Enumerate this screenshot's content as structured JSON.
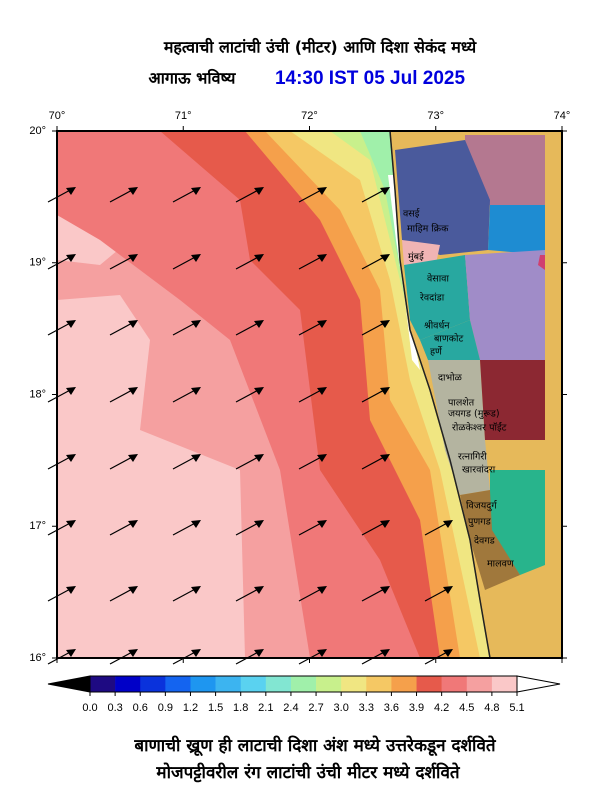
{
  "header": {
    "title": "महत्वाची लाटांची उंची (मीटर) आणि दिशा सेकंद मध्ये",
    "subtitle": "आगाऊ भविष्य",
    "time": "14:30 IST 05 Jul 2025"
  },
  "axes": {
    "top": [
      "70°",
      "71°",
      "72°",
      "73°",
      "74°"
    ],
    "left": [
      "20°",
      "19°",
      "18°",
      "17°",
      "16°"
    ]
  },
  "places": [
    "वसई",
    "माहिम क्रिक",
    "मुंबई",
    "वेसावा",
    "रेवदांडा",
    "श्रीवर्धन",
    "बाणकोट",
    "हर्णे",
    "दाभोळ",
    "पालशेत",
    "जयगड (मुरूड)",
    "रोळकेश्वर पॉईंट",
    "रत्नागिरी",
    "खारवांदरा",
    "विजयदुर्ग",
    "पुणगड",
    "देवगड",
    "मालवण"
  ],
  "colorbar": {
    "ticks": [
      "0.0",
      "0.3",
      "0.6",
      "0.9",
      "1.2",
      "1.5",
      "1.8",
      "2.1",
      "2.4",
      "2.7",
      "3.0",
      "3.3",
      "3.6",
      "3.9",
      "4.2",
      "4.5",
      "4.8",
      "5.1"
    ],
    "colors": [
      "#1e0a82",
      "#0000c8",
      "#0a32dc",
      "#1464f0",
      "#1e96f0",
      "#3cb4f0",
      "#5ad2f0",
      "#82e6d2",
      "#a0f0aa",
      "#c8f08c",
      "#f0e682",
      "#f5c864",
      "#f5a04b",
      "#e65a4b",
      "#f07878",
      "#f5a0a0",
      "#fac8c8"
    ]
  },
  "footer": [
    "बाणाची ख्रूण ही लाटाची दिशा अंश मध्ये उत्तरेकडून दर्शविते",
    "मोजपट्टीवरील रंग लाटांची उंची मीटर मध्ये दर्शविते"
  ]
}
